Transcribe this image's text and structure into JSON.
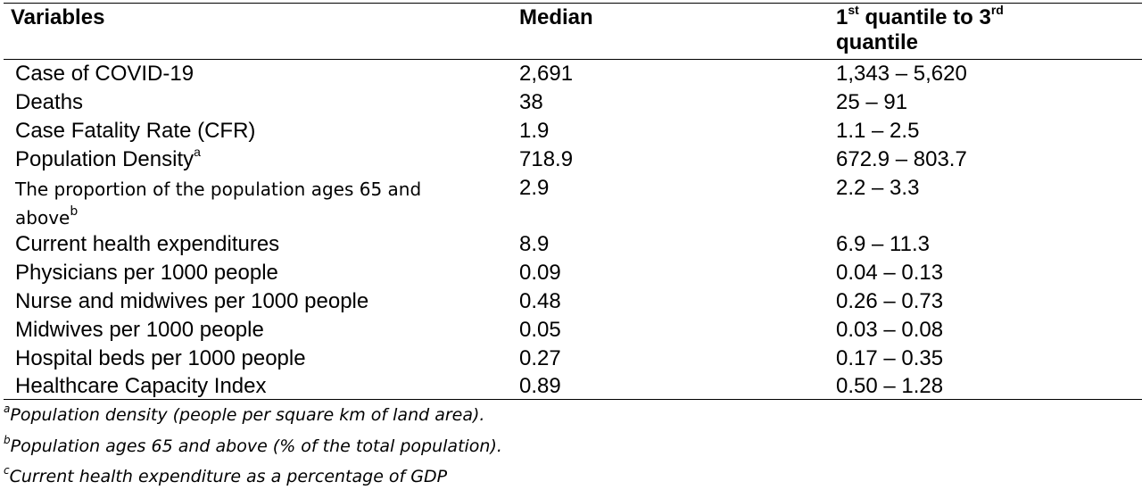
{
  "table": {
    "headers": {
      "variables": "Variables",
      "median": "Median",
      "iqr_prefix_1": "1",
      "iqr_sup_1": "st",
      "iqr_mid": " quantile to 3",
      "iqr_sup_2": "rd",
      "iqr_tail": "quantile"
    },
    "rows": [
      {
        "variable": "Case of COVID-19",
        "sup": "",
        "median": "2,691",
        "iqr": "1,343 – 5,620"
      },
      {
        "variable": "Deaths",
        "sup": "",
        "median": "38",
        "iqr": "25 – 91"
      },
      {
        "variable": "Case Fatality Rate (CFR)",
        "sup": "",
        "median": "1.9",
        "iqr": "1.1 – 2.5"
      },
      {
        "variable": "Population Density",
        "sup": "a",
        "median": "718.9",
        "iqr": "672.9 – 803.7"
      },
      {
        "variable_line1": "The proportion of the population ages 65 and",
        "variable_line2": "above",
        "sup": "b",
        "median": "2.9",
        "iqr": "2.2 – 3.3"
      },
      {
        "variable": "Current health expenditures",
        "sup": "",
        "median": "8.9",
        "iqr": "6.9 – 11.3"
      },
      {
        "variable": "Physicians per 1000 people",
        "sup": "",
        "median": "0.09",
        "iqr": "0.04 – 0.13"
      },
      {
        "variable": "Nurse and midwives per 1000 people",
        "sup": "",
        "median": "0.48",
        "iqr": "0.26 – 0.73"
      },
      {
        "variable": "Midwives per 1000 people",
        "sup": "",
        "median": "0.05",
        "iqr": "0.03 – 0.08"
      },
      {
        "variable": "Hospital beds per 1000 people",
        "sup": "",
        "median": "0.27",
        "iqr": "0.17 – 0.35"
      },
      {
        "variable": "Healthcare Capacity Index",
        "sup": "",
        "median": "0.89",
        "iqr": "0.50 – 1.28"
      }
    ]
  },
  "footnotes": [
    {
      "mark": "a",
      "text": "Population density (people per square km of land area)."
    },
    {
      "mark": "b",
      "text": "Population ages 65 and above (% of the total population)."
    },
    {
      "mark": "c",
      "text": "Current health expenditure as a percentage of GDP"
    }
  ]
}
